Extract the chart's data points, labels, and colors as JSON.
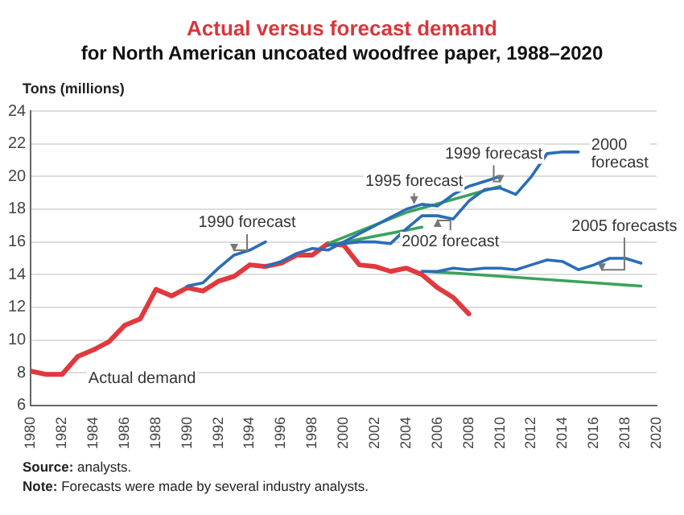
{
  "chart_data": {
    "type": "line",
    "title": "Actual versus forecast demand",
    "subtitle": "for North American uncoated woodfree paper, 1988–2020",
    "ylabel": "Tons (millions)",
    "xlim": [
      1980,
      2020
    ],
    "xticks": [
      1980,
      1982,
      1984,
      1986,
      1988,
      1990,
      1992,
      1994,
      1996,
      1998,
      2000,
      2002,
      2004,
      2006,
      2008,
      2010,
      2012,
      2014,
      2016,
      2018,
      2020
    ],
    "ylim": [
      6,
      24
    ],
    "yticks": [
      6,
      8,
      10,
      12,
      14,
      16,
      18,
      20,
      22,
      24
    ],
    "grid": "y",
    "legend": false,
    "marker": "none",
    "line_style": "solid",
    "series": [
      {
        "color": "#2a6db5",
        "x": [
          1990,
          1991,
          1992,
          1993,
          1994,
          1995
        ],
        "values": [
          13.3,
          13.5,
          14.4,
          15.2,
          15.5,
          16.0
        ]
      },
      {
        "color": "#2a6db5",
        "x": [
          1995,
          1996,
          1997,
          1998,
          1999,
          2000,
          2001,
          2002,
          2003,
          2004,
          2005,
          2006,
          2007,
          2008,
          2009,
          2010
        ],
        "values": [
          14.5,
          14.8,
          15.3,
          15.6,
          15.5,
          16.0,
          16.5,
          17.0,
          17.5,
          18.0,
          18.3,
          18.2,
          18.9,
          19.4,
          19.7,
          20.0
        ]
      },
      {
        "color": "#2a6db5",
        "x": [
          1999,
          2000,
          2001,
          2002,
          2003,
          2004,
          2005,
          2006,
          2007,
          2008,
          2009,
          2010,
          2011,
          2012,
          2013,
          2014,
          2015
        ],
        "values": [
          15.8,
          15.9,
          16.0,
          16.0,
          15.9,
          16.8,
          17.6,
          17.6,
          17.4,
          18.5,
          19.2,
          19.3,
          18.9,
          20.0,
          21.4,
          21.5,
          21.5
        ]
      },
      {
        "color": "#3aa35a",
        "x": [
          1999,
          2004,
          2010
        ],
        "values": [
          15.9,
          17.8,
          19.4
        ]
      },
      {
        "color": "#3aa35a",
        "x": [
          1999,
          2005
        ],
        "values": [
          15.8,
          16.9
        ]
      },
      {
        "color": "#2a6db5",
        "x": [
          2005,
          2006,
          2007,
          2008,
          2009,
          2010,
          2011,
          2012,
          2013,
          2014,
          2015,
          2016,
          2017,
          2018,
          2019
        ],
        "values": [
          14.2,
          14.2,
          14.4,
          14.3,
          14.4,
          14.4,
          14.3,
          14.6,
          14.9,
          14.8,
          14.3,
          14.6,
          15.0,
          15.0,
          14.7
        ]
      },
      {
        "color": "#3aa35a",
        "x": [
          2005,
          2007,
          2019
        ],
        "values": [
          14.2,
          14.1,
          13.3
        ]
      },
      {
        "color": "#e0393e",
        "x": [
          1980,
          1981,
          1982,
          1983,
          1984,
          1985,
          1986,
          1987,
          1988,
          1989,
          1990,
          1991,
          1992,
          1993,
          1994,
          1995,
          1996,
          1997,
          1998,
          1999,
          2000,
          2001,
          2002,
          2003,
          2004,
          2005,
          2006,
          2007,
          2008
        ],
        "values": [
          8.1,
          7.9,
          7.9,
          9.0,
          9.4,
          9.9,
          10.9,
          11.3,
          13.1,
          12.7,
          13.2,
          13.0,
          13.6,
          13.9,
          14.6,
          14.5,
          14.7,
          15.2,
          15.2,
          15.9,
          15.8,
          14.6,
          14.5,
          14.2,
          14.4,
          14.0,
          13.2,
          12.6,
          11.6
        ]
      }
    ],
    "annotations": [
      {
        "text": "1990 forecast",
        "x": 1993,
        "y": 15.2
      },
      {
        "text": "1995 forecast",
        "x": 2004.5,
        "y": 18.1
      },
      {
        "text": "1999 forecast",
        "x": 2010,
        "y": 19.4
      },
      {
        "text": "2000 forecast",
        "x": 2015,
        "y": 21.5
      },
      {
        "text": "2002 forecast",
        "x": 2006,
        "y": 17.6
      },
      {
        "text": "2005 forecasts",
        "x": 2016.5,
        "y": 14.0
      },
      {
        "text": "Actual demand",
        "x": 1983,
        "y": 9.0
      },
      "Source: analysts.",
      "Note: Forecasts were made by several industry analysts."
    ]
  }
}
